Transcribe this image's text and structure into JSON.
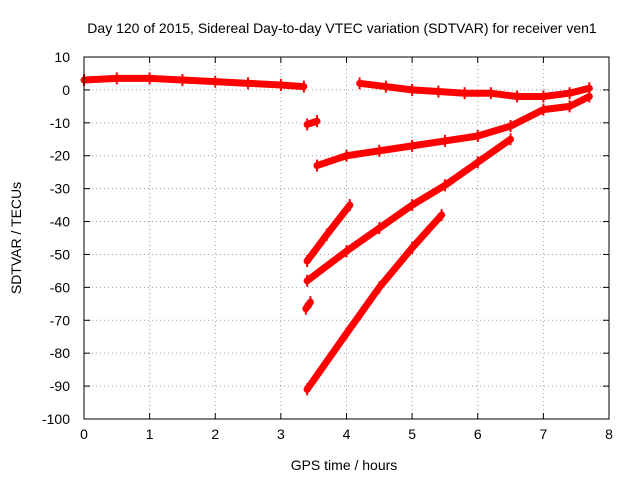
{
  "chart_data": {
    "type": "scatter",
    "title": "Day 120 of 2015, Sidereal Day-to-day VTEC variation (SDTVAR) for receiver ven1",
    "xlabel": "GPS time / hours",
    "ylabel": "SDTVAR / TECUs",
    "xlim": [
      0,
      8
    ],
    "ylim": [
      -100,
      10
    ],
    "xticks": [
      0,
      1,
      2,
      3,
      4,
      5,
      6,
      7,
      8
    ],
    "yticks": [
      -100,
      -90,
      -80,
      -70,
      -60,
      -50,
      -40,
      -30,
      -20,
      -10,
      0,
      10
    ],
    "grid": true,
    "legend": "none",
    "series_color": "#ff0000",
    "series": [
      {
        "x": [
          0.0,
          0.5,
          1.0,
          1.5,
          2.0,
          2.5,
          3.0,
          3.35
        ],
        "y": [
          3.0,
          3.5,
          3.5,
          3.0,
          2.5,
          2.0,
          1.5,
          1.0
        ]
      },
      {
        "x": [
          4.2,
          4.6,
          5.0,
          5.4,
          5.8,
          6.2,
          6.6,
          7.0,
          7.4,
          7.7
        ],
        "y": [
          2.0,
          1.0,
          0.0,
          -0.5,
          -1.0,
          -1.0,
          -2.0,
          -2.0,
          -1.0,
          0.5
        ]
      },
      {
        "x": [
          3.4,
          3.55
        ],
        "y": [
          -10.5,
          -9.5
        ]
      },
      {
        "x": [
          3.55,
          4.0,
          4.5,
          5.0,
          5.5,
          6.0,
          6.5,
          7.0,
          7.4,
          7.7
        ],
        "y": [
          -23.0,
          -20.0,
          -18.5,
          -17.0,
          -15.5,
          -14.0,
          -11.0,
          -6.0,
          -5.0,
          -2.0
        ]
      },
      {
        "x": [
          3.4,
          3.7,
          4.05
        ],
        "y": [
          -52.0,
          -44.0,
          -35.0
        ]
      },
      {
        "x": [
          3.4,
          4.0,
          4.5,
          5.0,
          5.5,
          6.0,
          6.5
        ],
        "y": [
          -58.0,
          -49.0,
          -42.0,
          -35.0,
          -29.0,
          -22.0,
          -15.0
        ]
      },
      {
        "x": [
          3.38,
          3.45
        ],
        "y": [
          -66.5,
          -64.5
        ]
      },
      {
        "x": [
          3.4,
          4.0,
          4.5,
          5.0,
          5.45
        ],
        "y": [
          -91.0,
          -74.0,
          -60.0,
          -48.0,
          -38.0
        ]
      }
    ]
  }
}
